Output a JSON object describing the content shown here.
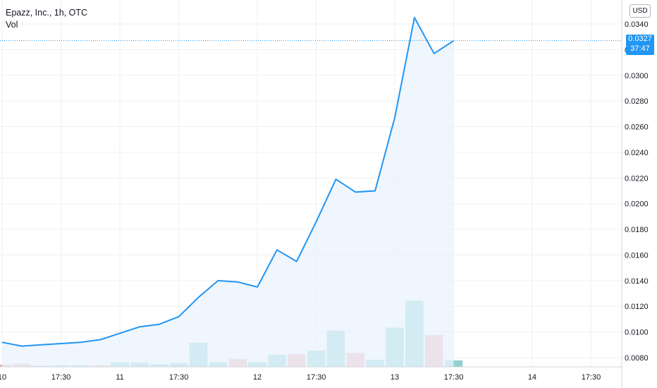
{
  "header": {
    "symbol_line": "Epazz, Inc., 1h, OTC",
    "volume_label": "Vol",
    "currency": "USD"
  },
  "last_price": {
    "value": 0.0327,
    "label": "0.0327",
    "countdown": "37:47"
  },
  "colors": {
    "line": "#2196f3",
    "area": "#e9f3fd",
    "volume_up": "#7ecac5",
    "volume_down": "#eea2a2",
    "grid": "#edf0f3",
    "axis_text": "#131722"
  },
  "chart_data": {
    "type": "area",
    "y_axis": {
      "position": "right",
      "ticks": [
        "0.0080",
        "0.0100",
        "0.0120",
        "0.0140",
        "0.0160",
        "0.0180",
        "0.0200",
        "0.0220",
        "0.0240",
        "0.0260",
        "0.0280",
        "0.0300",
        "0.0320",
        "0.0340"
      ],
      "range": [
        0.0072,
        0.036
      ]
    },
    "x_axis": {
      "ticks": [
        "10",
        "17:30",
        "11",
        "17:30",
        "12",
        "17:30",
        "13",
        "17:30",
        "14",
        "17:30"
      ],
      "tick_slots": [
        0,
        3,
        6,
        9,
        13,
        16,
        20,
        23,
        27,
        30
      ]
    },
    "grid": true,
    "price": [
      0.0092,
      0.0089,
      0.009,
      0.0091,
      0.0092,
      0.0094,
      0.0099,
      0.0104,
      0.0106,
      0.0112,
      0.0127,
      0.014,
      0.0139,
      0.0135,
      0.0164,
      0.0155,
      0.0186,
      0.0219,
      0.0209,
      0.021,
      0.0267,
      0.0345,
      0.0317,
      0.0327
    ],
    "volume": [
      {
        "value": 2.2,
        "dir": "down"
      },
      {
        "value": 2.8,
        "dir": "down"
      },
      {
        "value": 1.0,
        "dir": "up"
      },
      {
        "value": 1.5,
        "dir": "up"
      },
      {
        "value": 1.5,
        "dir": "up"
      },
      {
        "value": 1.4,
        "dir": "down"
      },
      {
        "value": 4.2,
        "dir": "up"
      },
      {
        "value": 4.0,
        "dir": "up"
      },
      {
        "value": 2.6,
        "dir": "up"
      },
      {
        "value": 3.6,
        "dir": "up"
      },
      {
        "value": 23.0,
        "dir": "up"
      },
      {
        "value": 4.6,
        "dir": "up"
      },
      {
        "value": 7.4,
        "dir": "down"
      },
      {
        "value": 4.6,
        "dir": "up"
      },
      {
        "value": 11.5,
        "dir": "up"
      },
      {
        "value": 12.3,
        "dir": "down"
      },
      {
        "value": 15.6,
        "dir": "up"
      },
      {
        "value": 34.8,
        "dir": "up"
      },
      {
        "value": 13.4,
        "dir": "down"
      },
      {
        "value": 6.8,
        "dir": "up"
      },
      {
        "value": 37.6,
        "dir": "up"
      },
      {
        "value": 63.6,
        "dir": "up"
      },
      {
        "value": 30.4,
        "dir": "down"
      },
      {
        "value": 6.2,
        "dir": "up"
      }
    ],
    "volume_max": 100
  }
}
